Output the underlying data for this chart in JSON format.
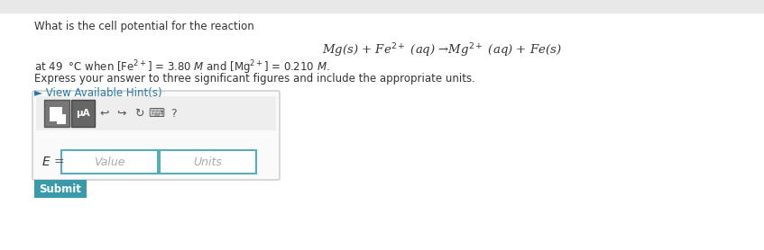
{
  "bg_color": "#f0f0f0",
  "content_bg": "#ffffff",
  "question_text": "What is the cell potential for the reaction",
  "reaction": "Mg(s) + Fe$^{2+}$ (aq) →Mg$^{2+}$ (aq) + Fe(s)",
  "condition_line": "at 49  °C when [Fe$^{2+}$] = 3.80 $\\mathit{M}$ and [Mg$^{2+}$] = 0.210 $\\mathit{M}$.",
  "express_text": "Express your answer to three significant figures and include the appropriate units.",
  "hint_text": "► View Available Hint(s)",
  "hint_color": "#2878a8",
  "label_E": "$E$ =",
  "placeholder_value": "Value",
  "placeholder_units": "Units",
  "submit_text": "Submit",
  "submit_bg": "#3a9aaa",
  "submit_text_color": "#ffffff",
  "box_border": "#c8c8c8",
  "input_border": "#5aacba",
  "text_color": "#333333",
  "gray_text": "#aaaaaa",
  "toolbar_bg": "#eeeeee",
  "btn1_color": "#777777",
  "btn2_color": "#666666"
}
